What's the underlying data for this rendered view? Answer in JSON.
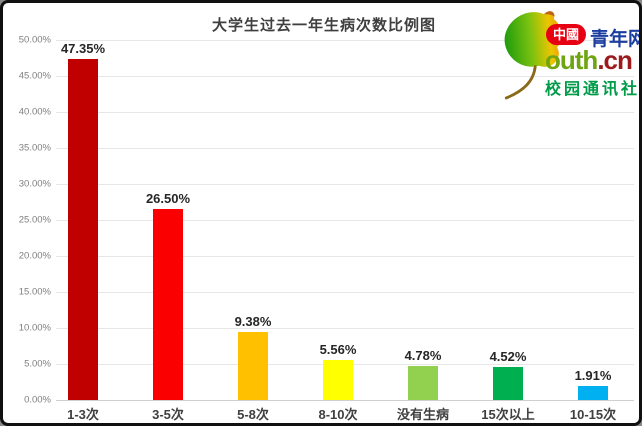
{
  "chart_data": {
    "type": "bar",
    "title": "大学生过去一年生病次数比例图",
    "categories": [
      "1-3次",
      "3-5次",
      "5-8次",
      "8-10次",
      "没有生病",
      "15次以上",
      "10-15次"
    ],
    "values": [
      47.35,
      26.5,
      9.38,
      5.56,
      4.78,
      4.52,
      1.91
    ],
    "value_labels": [
      "47.35%",
      "26.50%",
      "9.38%",
      "5.56%",
      "4.78%",
      "4.52%",
      "1.91%"
    ],
    "bar_colors": [
      "#C00000",
      "#FB0000",
      "#FFC000",
      "#FFFF00",
      "#92D050",
      "#00B050",
      "#00B0F0"
    ],
    "xlabel": "",
    "ylabel": "",
    "ylim": [
      0,
      50
    ],
    "ytick_step": 5,
    "ytick_labels": [
      "0.00%",
      "5.00%",
      "10.00%",
      "15.00%",
      "20.00%",
      "25.00%",
      "30.00%",
      "35.00%",
      "40.00%",
      "45.00%",
      "50.00%"
    ],
    "grid": true,
    "legend": "none"
  },
  "logo": {
    "leaf_icon": "ginkgo-leaf-icon",
    "badge_text": "中國",
    "badge_bg": "#E60012",
    "brand_text": "青年网",
    "brand_color": "#1C3E9E",
    "domain_prefix": "outh",
    "domain_prefix_color": "#6FA513",
    "domain_suffix": ".cn",
    "domain_suffix_color": "#9C1A1C",
    "tagline": "校园通讯社",
    "tagline_color": "#009B48"
  }
}
